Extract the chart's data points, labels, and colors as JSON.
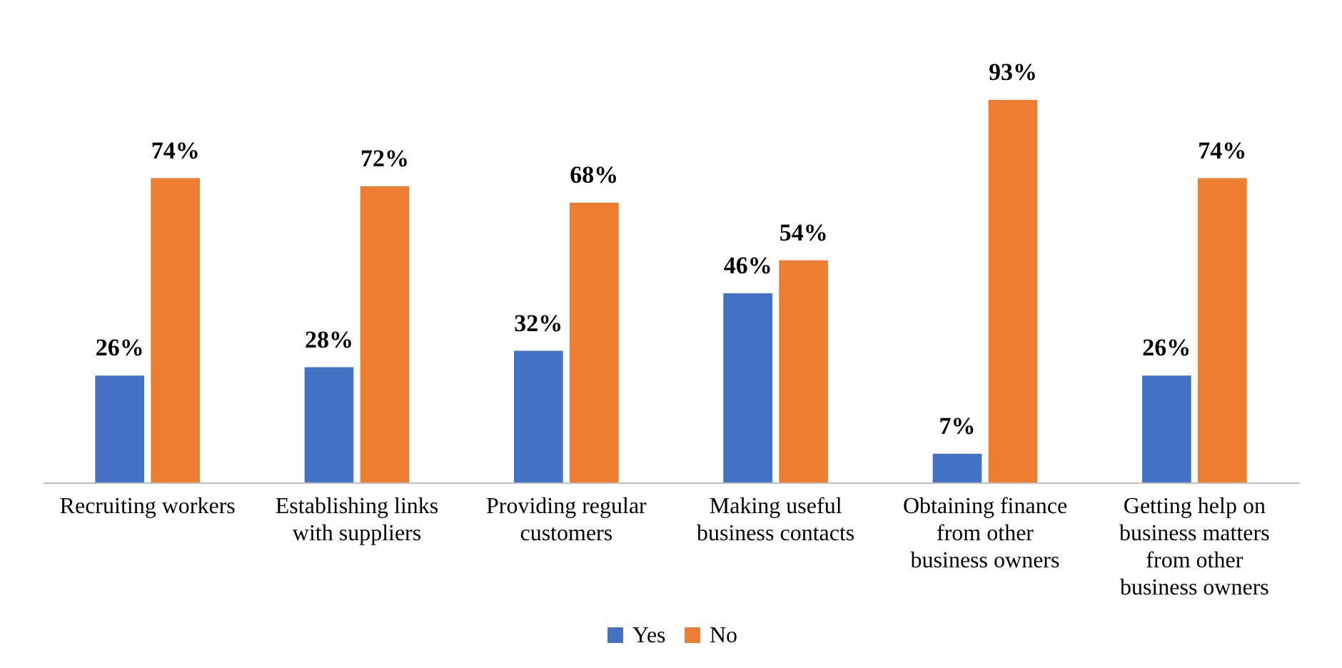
{
  "chart_data": {
    "type": "bar",
    "categories": [
      "Recruiting workers",
      "Establishing links with suppliers",
      "Providing regular customers",
      "Making useful business contacts",
      "Obtaining finance from other business owners",
      "Getting help on business matters from other business owners"
    ],
    "series": [
      {
        "name": "Yes",
        "color": "#4472c4",
        "values": [
          26,
          28,
          32,
          46,
          7,
          26
        ],
        "value_labels": [
          "26%",
          "28%",
          "32%",
          "46%",
          "7%",
          "26%"
        ]
      },
      {
        "name": "No",
        "color": "#ed7d31",
        "values": [
          74,
          72,
          68,
          54,
          93,
          74
        ],
        "value_labels": [
          "74%",
          "72%",
          "68%",
          "54%",
          "93%",
          "74%"
        ]
      }
    ],
    "legend": "bottom"
  }
}
